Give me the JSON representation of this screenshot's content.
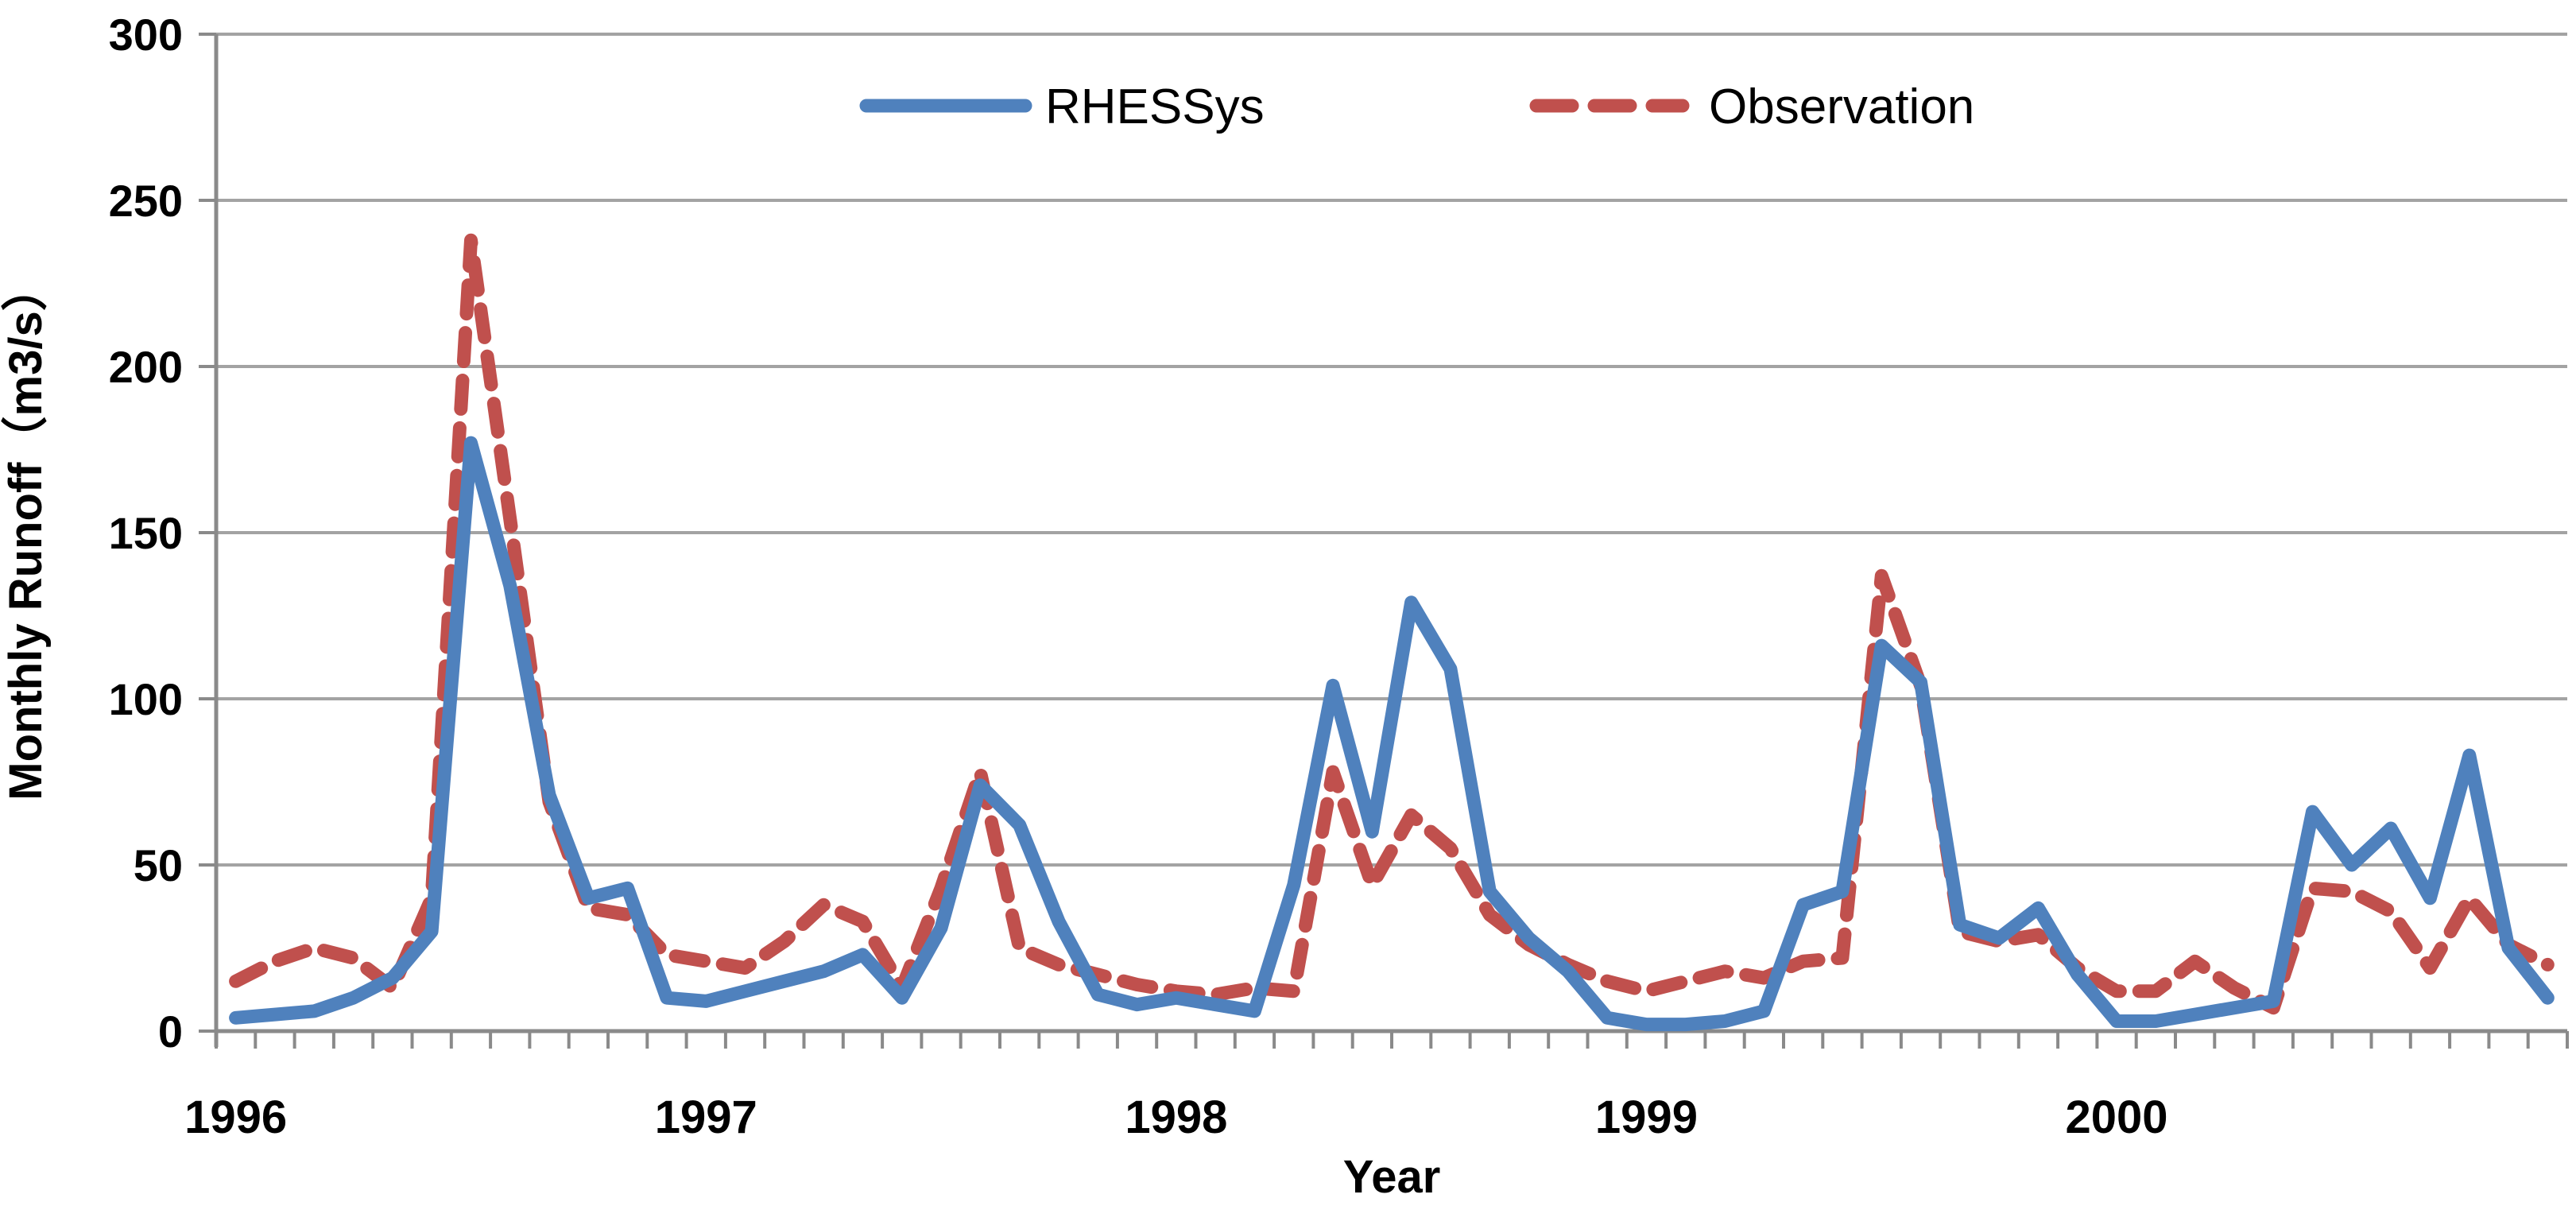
{
  "chart_data": {
    "type": "line",
    "title": "",
    "xlabel": "Year",
    "ylabel": "Monthly Runoff（m3/s）",
    "ylim": [
      0,
      300
    ],
    "ytick_interval": 50,
    "ytick_labels": [
      "0",
      "50",
      "100",
      "150",
      "200",
      "250",
      "300"
    ],
    "grid": true,
    "legend_position": "top-center",
    "x_year_labels": [
      "1996",
      "1997",
      "1998",
      "1999",
      "2000"
    ],
    "year_start_indices": [
      0,
      12,
      24,
      36,
      48
    ],
    "months_per_year": 12,
    "categories_note": "60 monthly values, Jan 1996 - Dec 2000",
    "series": [
      {
        "name": "RHESSys",
        "color": "#4f81bd",
        "style": "solid",
        "values": [
          4,
          5,
          6,
          10,
          16,
          30,
          177,
          134,
          71,
          40,
          43,
          10,
          9,
          12,
          15,
          18,
          23,
          10,
          31,
          74,
          62,
          33,
          11,
          8,
          10,
          8,
          6,
          44,
          104,
          60,
          129,
          109,
          42,
          28,
          18,
          4,
          2,
          2,
          3,
          6,
          38,
          42,
          116,
          105,
          32,
          28,
          37,
          17,
          3,
          3,
          5,
          7,
          9,
          66,
          50,
          61,
          40,
          83,
          25,
          10
        ]
      },
      {
        "name": "Observation",
        "color": "#c0504d",
        "style": "dashed",
        "values": [
          15,
          21,
          25,
          22,
          13,
          40,
          238,
          154,
          69,
          37,
          35,
          23,
          21,
          19,
          27,
          38,
          33,
          13,
          43,
          78,
          25,
          20,
          17,
          14,
          12,
          11,
          13,
          12,
          78,
          44,
          65,
          55,
          35,
          26,
          20,
          15,
          12,
          15,
          18,
          16,
          21,
          22,
          137,
          104,
          30,
          27,
          29,
          19,
          12,
          12,
          21,
          13,
          7,
          43,
          42,
          36,
          19,
          40,
          26,
          20
        ]
      }
    ]
  },
  "legend": {
    "items": [
      {
        "label": "RHESSys",
        "swatch": "solid-line-swatch",
        "color": "#4f81bd"
      },
      {
        "label": "Observation",
        "swatch": "dashed-line-swatch",
        "color": "#c0504d"
      }
    ]
  },
  "colors": {
    "rhessys_blue": "#4f81bd",
    "observation_red": "#c0504d",
    "gridline_gray": "#a3a3a3",
    "axis_gray": "#8a8a8a",
    "text_black": "#000000",
    "background": "#ffffff"
  }
}
